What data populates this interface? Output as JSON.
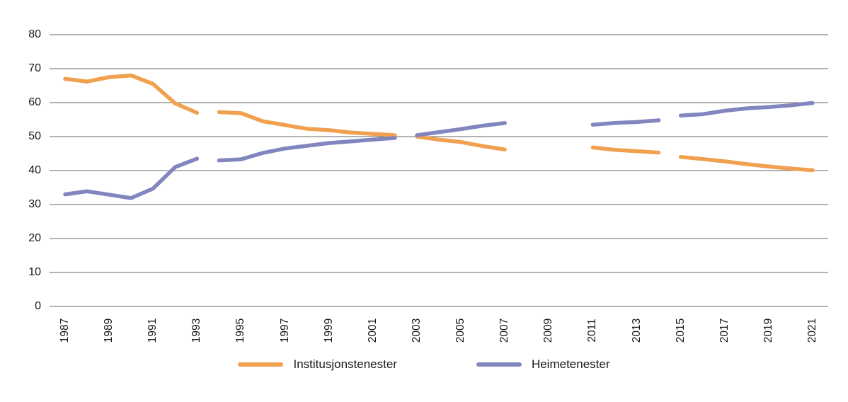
{
  "chart_data": {
    "type": "line",
    "title": "",
    "xlabel": "",
    "ylabel": "",
    "x_range": [
      1987,
      2021
    ],
    "ylim": [
      0,
      80
    ],
    "y_ticks": [
      0,
      10,
      20,
      30,
      40,
      50,
      60,
      70,
      80
    ],
    "x_tick_labels": [
      "1987",
      "1989",
      "1991",
      "1993",
      "1995",
      "1997",
      "1999",
      "2001",
      "2003",
      "2005",
      "2007",
      "2009",
      "2011",
      "2013",
      "2015",
      "2017",
      "2019",
      "2021"
    ],
    "grid": "horizontal",
    "legend_position": "bottom",
    "missing_years": [
      2008,
      2009,
      2010
    ],
    "series_breaks_after": [
      1993,
      2002,
      2007,
      2014
    ],
    "series": [
      {
        "name": "Institusjonstenester",
        "color": "#F0A04E",
        "segments": [
          [
            [
              1987,
              67.0
            ],
            [
              1988,
              66.2
            ],
            [
              1989,
              67.5
            ],
            [
              1990,
              68.0
            ],
            [
              1991,
              65.5
            ],
            [
              1992,
              59.8
            ],
            [
              1993,
              57.0
            ]
          ],
          [
            [
              1994,
              57.2
            ],
            [
              1995,
              56.9
            ],
            [
              1996,
              54.5
            ],
            [
              1997,
              53.4
            ],
            [
              1998,
              52.3
            ],
            [
              1999,
              51.9
            ],
            [
              2000,
              51.2
            ],
            [
              2001,
              50.8
            ],
            [
              2002,
              50.4
            ]
          ],
          [
            [
              2003,
              50.0
            ],
            [
              2004,
              49.1
            ],
            [
              2005,
              48.4
            ],
            [
              2006,
              47.2
            ],
            [
              2007,
              46.2
            ]
          ],
          [
            [
              2011,
              46.8
            ],
            [
              2012,
              46.1
            ],
            [
              2013,
              45.7
            ],
            [
              2014,
              45.3
            ]
          ],
          [
            [
              2015,
              44.0
            ],
            [
              2016,
              43.4
            ],
            [
              2017,
              42.7
            ],
            [
              2018,
              41.9
            ],
            [
              2019,
              41.2
            ],
            [
              2020,
              40.6
            ],
            [
              2021,
              40.1
            ]
          ]
        ]
      },
      {
        "name": "Heimetenester",
        "color": "#8186BF",
        "segments": [
          [
            [
              1987,
              33.0
            ],
            [
              1988,
              33.9
            ],
            [
              1989,
              32.9
            ],
            [
              1990,
              31.9
            ],
            [
              1991,
              34.7
            ],
            [
              1992,
              41.0
            ],
            [
              1993,
              43.5
            ]
          ],
          [
            [
              1994,
              43.0
            ],
            [
              1995,
              43.3
            ],
            [
              1996,
              45.2
            ],
            [
              1997,
              46.5
            ],
            [
              1998,
              47.3
            ],
            [
              1999,
              48.1
            ],
            [
              2000,
              48.6
            ],
            [
              2001,
              49.1
            ],
            [
              2002,
              49.6
            ]
          ],
          [
            [
              2003,
              50.4
            ],
            [
              2004,
              51.3
            ],
            [
              2005,
              52.2
            ],
            [
              2006,
              53.2
            ],
            [
              2007,
              54.0
            ]
          ],
          [
            [
              2011,
              53.5
            ],
            [
              2012,
              54.0
            ],
            [
              2013,
              54.3
            ],
            [
              2014,
              54.8
            ]
          ],
          [
            [
              2015,
              56.2
            ],
            [
              2016,
              56.6
            ],
            [
              2017,
              57.6
            ],
            [
              2018,
              58.3
            ],
            [
              2019,
              58.7
            ],
            [
              2020,
              59.2
            ],
            [
              2021,
              59.9
            ]
          ]
        ]
      }
    ],
    "colors": {
      "grid_line": "#666666",
      "tick_text": "#1a1a1a",
      "background": "#ffffff"
    }
  }
}
